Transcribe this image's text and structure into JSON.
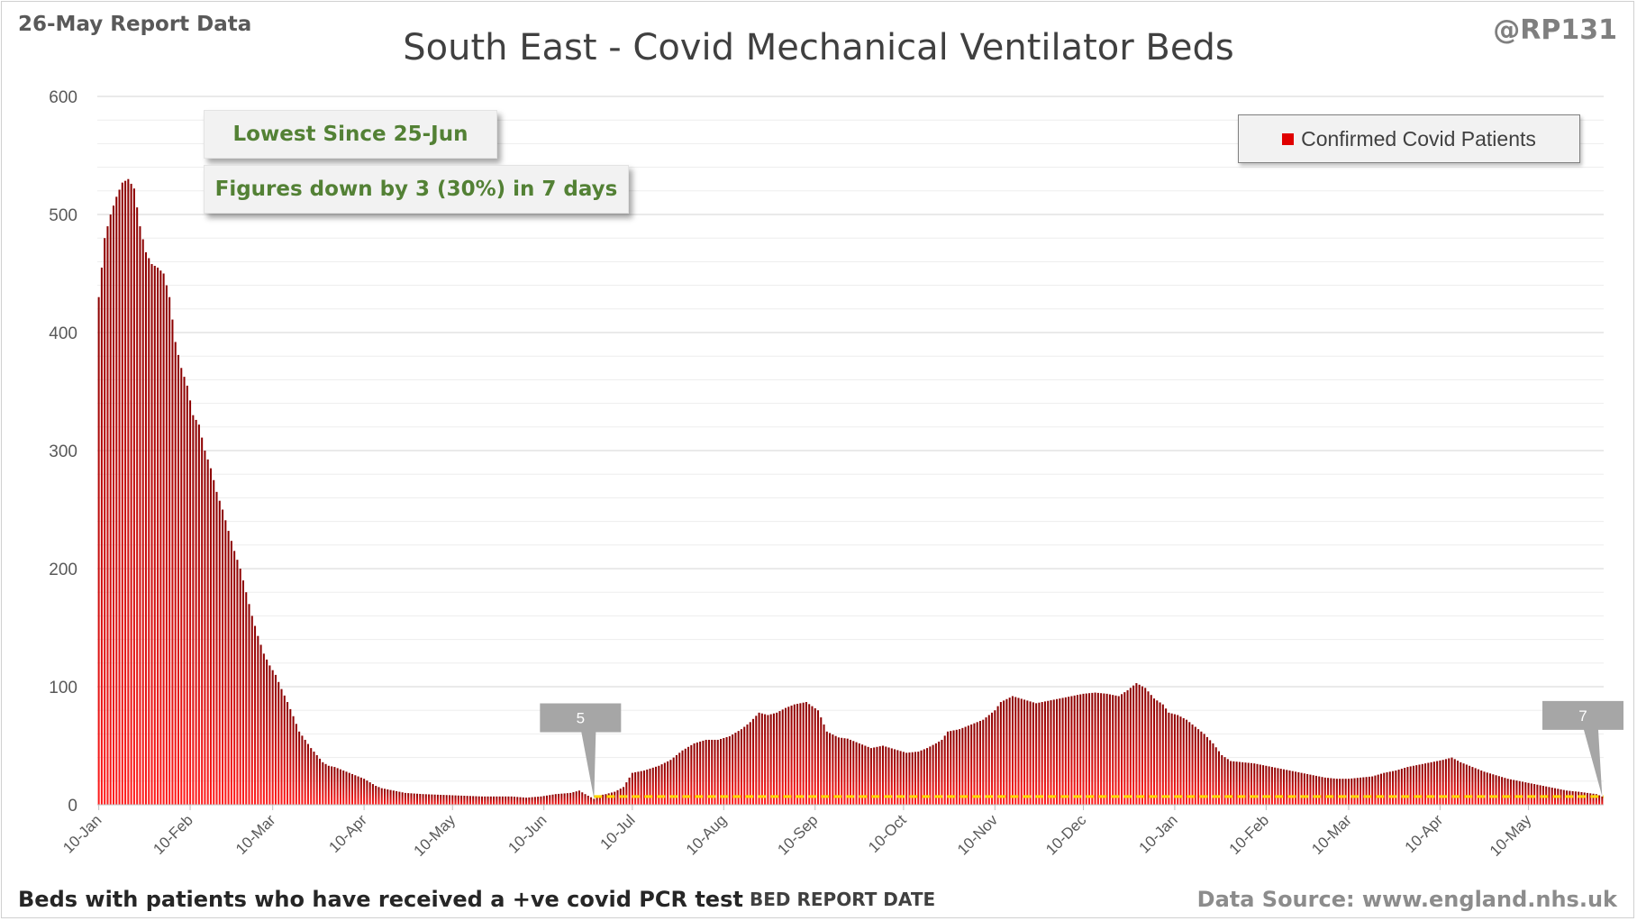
{
  "header": {
    "report_date": "26-May Report Data",
    "handle": "@RP131",
    "title": "South East - Covid Mechanical Ventilator Beds"
  },
  "footer": {
    "footnote": "Beds with patients who have received a +ve covid PCR test",
    "source": "Data Source: www.england.nhs.uk"
  },
  "callouts": {
    "lowest": "Lowest Since 25-Jun",
    "change": "Figures down by 3 (30%) in 7 days"
  },
  "colors": {
    "bar_top": "#8b0000",
    "bar_bottom": "#ff1a1a",
    "reference_line": "#ffd700",
    "callout_text": "#538135",
    "flag": "#a6a6a6"
  },
  "chart_data": {
    "type": "bar",
    "title": "South East - Covid Mechanical Ventilator Beds",
    "xlabel": "BED REPORT DATE",
    "ylabel": "",
    "ylim": [
      0,
      600
    ],
    "y_ticks": [
      0,
      100,
      200,
      300,
      400,
      500,
      600
    ],
    "y_tick_labels": [
      "0",
      "100",
      "200",
      "300",
      "400",
      "500",
      "600"
    ],
    "grid": true,
    "legend": {
      "position": "top-right",
      "entries": [
        "Confirmed Covid Patients"
      ]
    },
    "x_start": "10-Jan",
    "x_ticks": [
      {
        "day": 0,
        "label": "10-Jan"
      },
      {
        "day": 31,
        "label": "10-Feb"
      },
      {
        "day": 59,
        "label": "10-Mar"
      },
      {
        "day": 90,
        "label": "10-Apr"
      },
      {
        "day": 120,
        "label": "10-May"
      },
      {
        "day": 151,
        "label": "10-Jun"
      },
      {
        "day": 181,
        "label": "10-Jul"
      },
      {
        "day": 212,
        "label": "10-Aug"
      },
      {
        "day": 243,
        "label": "10-Sep"
      },
      {
        "day": 273,
        "label": "10-Oct"
      },
      {
        "day": 304,
        "label": "10-Nov"
      },
      {
        "day": 334,
        "label": "10-Dec"
      },
      {
        "day": 365,
        "label": "10-Jan"
      },
      {
        "day": 396,
        "label": "10-Feb"
      },
      {
        "day": 424,
        "label": "10-Mar"
      },
      {
        "day": 455,
        "label": "10-Apr"
      },
      {
        "day": 485,
        "label": "10-May"
      }
    ],
    "anchors": [
      [
        0,
        430
      ],
      [
        2,
        480
      ],
      [
        4,
        500
      ],
      [
        6,
        515
      ],
      [
        8,
        527
      ],
      [
        10,
        530
      ],
      [
        12,
        522
      ],
      [
        14,
        490
      ],
      [
        16,
        468
      ],
      [
        18,
        458
      ],
      [
        20,
        455
      ],
      [
        22,
        450
      ],
      [
        24,
        430
      ],
      [
        26,
        392
      ],
      [
        28,
        370
      ],
      [
        30,
        355
      ],
      [
        32,
        330
      ],
      [
        34,
        322
      ],
      [
        36,
        300
      ],
      [
        38,
        285
      ],
      [
        40,
        265
      ],
      [
        42,
        250
      ],
      [
        44,
        232
      ],
      [
        46,
        215
      ],
      [
        48,
        200
      ],
      [
        50,
        180
      ],
      [
        52,
        160
      ],
      [
        54,
        143
      ],
      [
        56,
        128
      ],
      [
        58,
        118
      ],
      [
        60,
        110
      ],
      [
        62,
        98
      ],
      [
        64,
        87
      ],
      [
        66,
        75
      ],
      [
        68,
        62
      ],
      [
        70,
        55
      ],
      [
        72,
        48
      ],
      [
        74,
        42
      ],
      [
        76,
        36
      ],
      [
        78,
        33
      ],
      [
        80,
        32
      ],
      [
        82,
        30
      ],
      [
        84,
        28
      ],
      [
        86,
        26
      ],
      [
        88,
        24
      ],
      [
        90,
        22
      ],
      [
        92,
        19
      ],
      [
        94,
        16
      ],
      [
        96,
        14
      ],
      [
        98,
        13
      ],
      [
        100,
        12
      ],
      [
        104,
        10
      ],
      [
        110,
        9
      ],
      [
        120,
        8
      ],
      [
        130,
        7
      ],
      [
        140,
        7
      ],
      [
        145,
        6
      ],
      [
        150,
        7
      ],
      [
        155,
        9
      ],
      [
        160,
        10
      ],
      [
        163,
        12
      ],
      [
        165,
        9
      ],
      [
        168,
        5
      ],
      [
        170,
        8
      ],
      [
        172,
        9
      ],
      [
        175,
        11
      ],
      [
        178,
        15
      ],
      [
        181,
        27
      ],
      [
        185,
        29
      ],
      [
        190,
        33
      ],
      [
        194,
        38
      ],
      [
        198,
        46
      ],
      [
        202,
        52
      ],
      [
        206,
        55
      ],
      [
        210,
        55
      ],
      [
        214,
        58
      ],
      [
        218,
        64
      ],
      [
        221,
        70
      ],
      [
        224,
        78
      ],
      [
        227,
        76
      ],
      [
        230,
        78
      ],
      [
        233,
        82
      ],
      [
        236,
        85
      ],
      [
        240,
        87
      ],
      [
        244,
        80
      ],
      [
        247,
        62
      ],
      [
        251,
        57
      ],
      [
        254,
        56
      ],
      [
        258,
        52
      ],
      [
        262,
        48
      ],
      [
        266,
        50
      ],
      [
        270,
        47
      ],
      [
        274,
        44
      ],
      [
        278,
        45
      ],
      [
        281,
        48
      ],
      [
        284,
        52
      ],
      [
        286,
        55
      ],
      [
        288,
        62
      ],
      [
        292,
        64
      ],
      [
        296,
        68
      ],
      [
        300,
        72
      ],
      [
        304,
        80
      ],
      [
        306,
        87
      ],
      [
        310,
        92
      ],
      [
        314,
        89
      ],
      [
        318,
        86
      ],
      [
        322,
        88
      ],
      [
        326,
        90
      ],
      [
        330,
        92
      ],
      [
        334,
        94
      ],
      [
        338,
        95
      ],
      [
        342,
        94
      ],
      [
        346,
        92
      ],
      [
        349,
        97
      ],
      [
        352,
        103
      ],
      [
        355,
        99
      ],
      [
        358,
        90
      ],
      [
        361,
        85
      ],
      [
        363,
        78
      ],
      [
        366,
        76
      ],
      [
        369,
        72
      ],
      [
        372,
        66
      ],
      [
        375,
        60
      ],
      [
        378,
        52
      ],
      [
        381,
        42
      ],
      [
        384,
        37
      ],
      [
        388,
        36
      ],
      [
        392,
        35
      ],
      [
        396,
        33
      ],
      [
        400,
        31
      ],
      [
        404,
        29
      ],
      [
        408,
        27
      ],
      [
        412,
        25
      ],
      [
        416,
        23
      ],
      [
        420,
        22
      ],
      [
        424,
        22
      ],
      [
        428,
        23
      ],
      [
        432,
        24
      ],
      [
        436,
        27
      ],
      [
        440,
        29
      ],
      [
        444,
        32
      ],
      [
        448,
        34
      ],
      [
        452,
        36
      ],
      [
        456,
        38
      ],
      [
        459,
        40
      ],
      [
        462,
        36
      ],
      [
        466,
        32
      ],
      [
        470,
        28
      ],
      [
        474,
        25
      ],
      [
        478,
        22
      ],
      [
        482,
        20
      ],
      [
        486,
        18
      ],
      [
        490,
        16
      ],
      [
        494,
        14
      ],
      [
        498,
        12
      ],
      [
        502,
        11
      ],
      [
        505,
        10
      ],
      [
        508,
        9
      ],
      [
        510,
        7
      ]
    ],
    "reference_line_value": 7,
    "annotations": [
      {
        "day": 168,
        "value": 5,
        "label": "5"
      },
      {
        "day": 510,
        "value": 7,
        "label": "7"
      }
    ],
    "series": [
      {
        "name": "Confirmed Covid Patients"
      }
    ]
  }
}
